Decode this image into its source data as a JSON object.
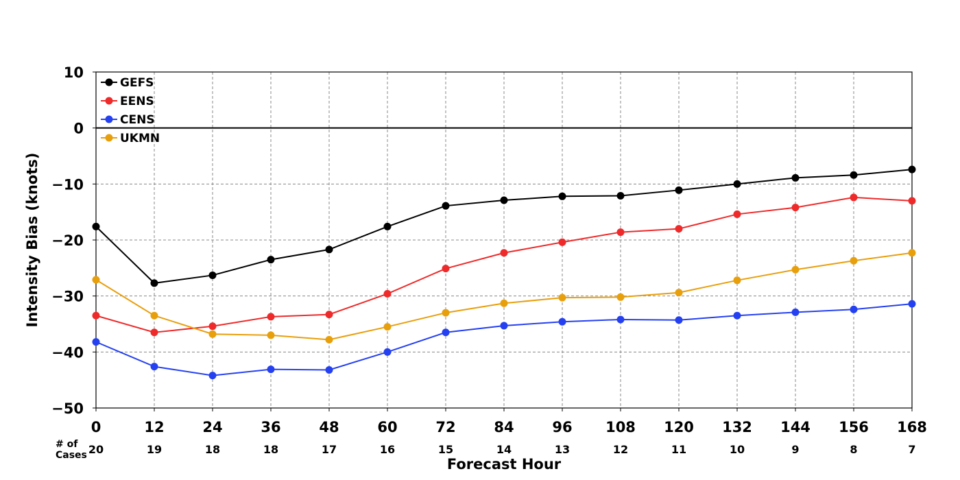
{
  "chart_data": {
    "type": "line",
    "xlabel": "Forecast Hour",
    "ylabel": "Intensity Bias (knots)",
    "xlim": [
      0,
      168
    ],
    "ylim": [
      -50,
      10
    ],
    "grid": true,
    "zero_line": true,
    "legend_position": "top-left",
    "x_ticks": [
      0,
      12,
      24,
      36,
      48,
      60,
      72,
      84,
      96,
      108,
      120,
      132,
      144,
      156,
      168
    ],
    "x_tick_labels": [
      "0",
      "12",
      "24",
      "36",
      "48",
      "60",
      "72",
      "84",
      "96",
      "108",
      "120",
      "132",
      "144",
      "156",
      "168"
    ],
    "y_ticks": [
      10,
      0,
      -10,
      -20,
      -30,
      -40,
      -50
    ],
    "y_tick_labels": [
      "10",
      "0",
      "−10",
      "−20",
      "−30",
      "−40",
      "−50"
    ],
    "cases_label": "# of Cases",
    "cases": [
      "20",
      "19",
      "18",
      "18",
      "17",
      "16",
      "15",
      "14",
      "13",
      "12",
      "11",
      "10",
      "9",
      "8",
      "7"
    ],
    "x": [
      0,
      12,
      24,
      36,
      48,
      60,
      72,
      84,
      96,
      108,
      120,
      132,
      144,
      156,
      168
    ],
    "series": [
      {
        "name": "GEFS",
        "color": "#000000",
        "values": [
          -17.6,
          -27.7,
          -26.3,
          -23.5,
          -21.7,
          -17.6,
          -13.9,
          -12.9,
          -12.2,
          -12.1,
          -11.1,
          -10.0,
          -8.9,
          -8.4,
          -7.4
        ]
      },
      {
        "name": "EENS",
        "color": "#ee2a2a",
        "values": [
          -33.5,
          -36.5,
          -35.4,
          -33.7,
          -33.3,
          -29.6,
          -25.1,
          -22.3,
          -20.4,
          -18.6,
          -18.0,
          -15.4,
          -14.2,
          -12.4,
          -13.0
        ]
      },
      {
        "name": "CENS",
        "color": "#2440f0",
        "values": [
          -38.2,
          -42.6,
          -44.2,
          -43.1,
          -43.2,
          -40.0,
          -36.5,
          -35.3,
          -34.6,
          -34.2,
          -34.3,
          -33.5,
          -32.9,
          -32.4,
          -31.4
        ]
      },
      {
        "name": "UKMN",
        "color": "#e89f0c",
        "values": [
          -27.1,
          -33.5,
          -36.8,
          -37.0,
          -37.8,
          -35.5,
          -33.0,
          -31.3,
          -30.3,
          -30.2,
          -29.4,
          -27.2,
          -25.3,
          -23.7,
          -22.3
        ]
      }
    ]
  }
}
